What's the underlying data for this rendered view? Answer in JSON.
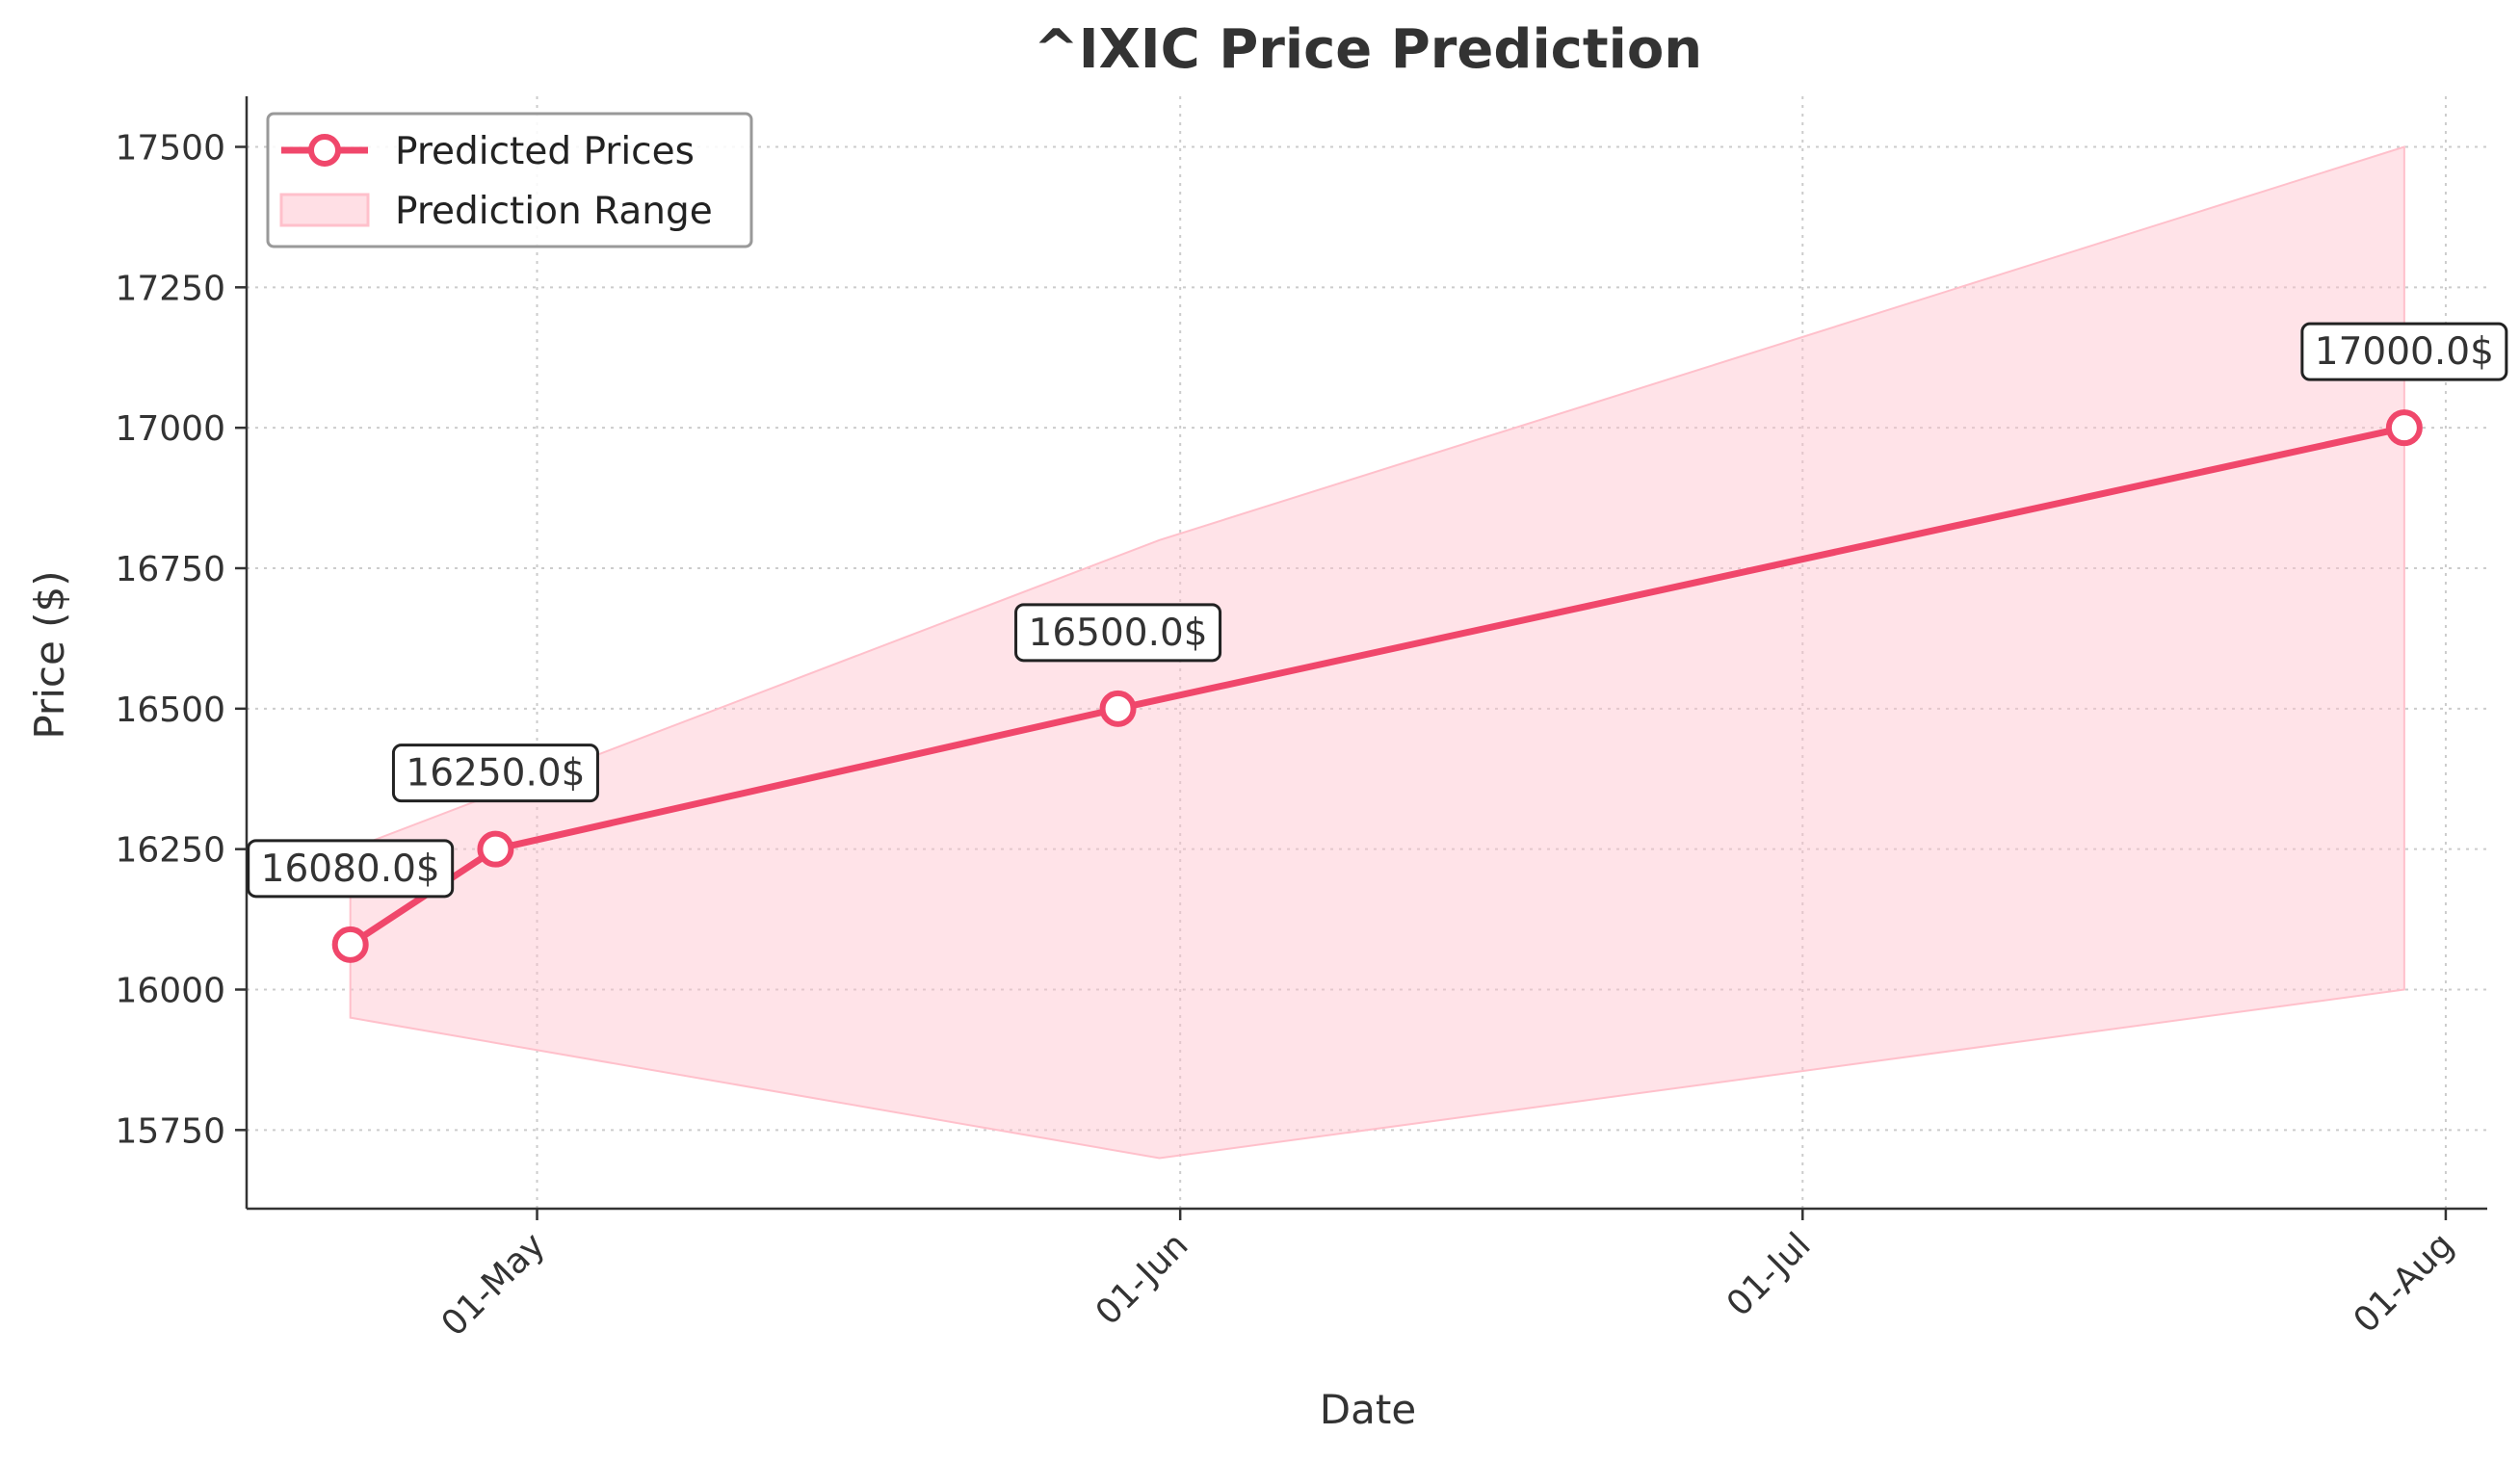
{
  "chart_data": {
    "type": "line",
    "title": "^IXIC Price Prediction",
    "xlabel": "Date",
    "ylabel": "Price ($)",
    "x_tick_labels": [
      "01-May",
      "01-Jun",
      "01-Jul",
      "01-Aug"
    ],
    "x_tick_dates": [
      "2024-05-01",
      "2024-06-01",
      "2024-07-01",
      "2024-08-01"
    ],
    "x_range": [
      "2024-04-17",
      "2024-08-03"
    ],
    "ylim": [
      15610,
      17590
    ],
    "y_ticks": [
      15750,
      16000,
      16250,
      16500,
      16750,
      17000,
      17250,
      17500
    ],
    "grid": true,
    "legend_position": "top-left",
    "series": [
      {
        "name": "Predicted Prices",
        "color": "#f0476b",
        "x": [
          "2024-04-22",
          "2024-04-29",
          "2024-05-29",
          "2024-07-30"
        ],
        "values": [
          16080,
          16250,
          16500,
          17000
        ],
        "data_labels": [
          "16080.0$",
          "16250.0$",
          "16500.0$",
          "17000.0$"
        ]
      }
    ],
    "range": {
      "name": "Prediction Range",
      "color": "#ffc0cb",
      "x": [
        "2024-04-22",
        "2024-05-31",
        "2024-07-30"
      ],
      "upper": [
        16250,
        16800,
        17500
      ],
      "lower": [
        15950,
        15700,
        16000
      ]
    }
  }
}
